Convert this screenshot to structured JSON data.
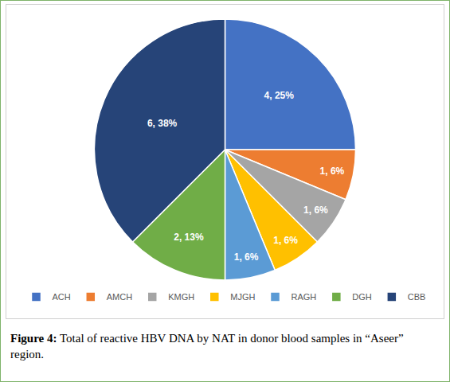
{
  "chart_data": {
    "type": "pie",
    "categories": [
      "ACH",
      "AMCH",
      "KMGH",
      "MJGH",
      "RAGH",
      "DGH",
      "CBB"
    ],
    "values": [
      4,
      1,
      1,
      1,
      1,
      2,
      6
    ],
    "value_labels": [
      "4, 25%",
      "1, 6%",
      "1, 6%",
      "1, 6%",
      "1, 6%",
      "2, 13%",
      "6, 38%"
    ],
    "colors": [
      "#4472c4",
      "#ed7d31",
      "#a5a5a5",
      "#ffc000",
      "#5b9bd5",
      "#70ad47",
      "#264478"
    ],
    "data_labels": true,
    "legend": "bottom",
    "caption": {
      "label": "Figure 4:",
      "text": "Total of reactive HBV DNA by NAT in donor blood samples in “Aseer”  region."
    }
  }
}
